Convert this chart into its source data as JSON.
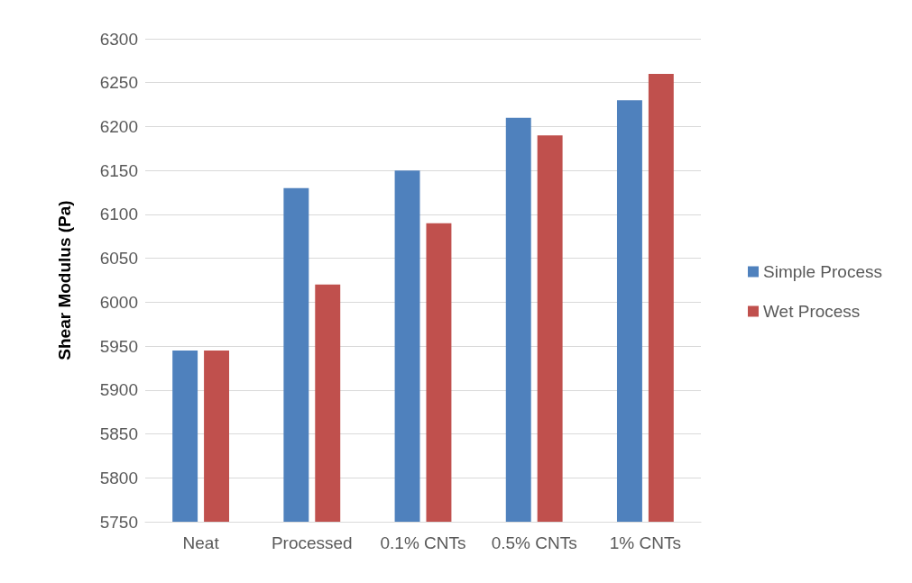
{
  "chart_data": {
    "type": "bar",
    "ylabel": "Shear Modulus (Pa)",
    "categories": [
      "Neat",
      "Processed",
      "0.1% CNTs",
      "0.5% CNTs",
      "1% CNTs"
    ],
    "series": [
      {
        "name": "Simple Process",
        "color": "#4f81bd",
        "values": [
          5945,
          6130,
          6150,
          6210,
          6230
        ]
      },
      {
        "name": "Wet Process",
        "color": "#c0504d",
        "values": [
          5945,
          6020,
          6090,
          6190,
          6260
        ]
      }
    ],
    "ylim": [
      5750,
      6300
    ],
    "yticks": [
      5750,
      5800,
      5850,
      5900,
      5950,
      6000,
      6050,
      6100,
      6150,
      6200,
      6250,
      6300
    ],
    "grid": "y",
    "legend": "right"
  }
}
